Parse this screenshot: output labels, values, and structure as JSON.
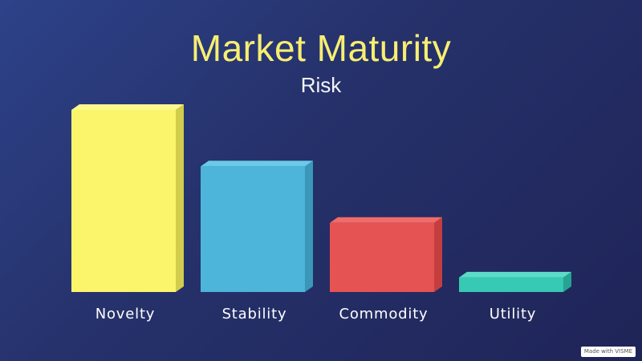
{
  "watermark_text": "Made with VISME",
  "chart_data": {
    "type": "bar",
    "title": "Market Maturity",
    "subtitle": "Risk",
    "categories": [
      "Novelty",
      "Stability",
      "Commodity",
      "Utility"
    ],
    "values": [
      100,
      69,
      38,
      8
    ],
    "colors": {
      "front": [
        "#faf56a",
        "#4cb5d9",
        "#e55352",
        "#37c9b3"
      ],
      "side": [
        "#d2cd4c",
        "#3a97ba",
        "#c43e3f",
        "#26a392"
      ],
      "top": [
        "#fdf98c",
        "#6ccae9",
        "#f06b69",
        "#5cdcc8"
      ]
    },
    "ylim": [
      0,
      100
    ],
    "grid": false,
    "legend": "none"
  }
}
